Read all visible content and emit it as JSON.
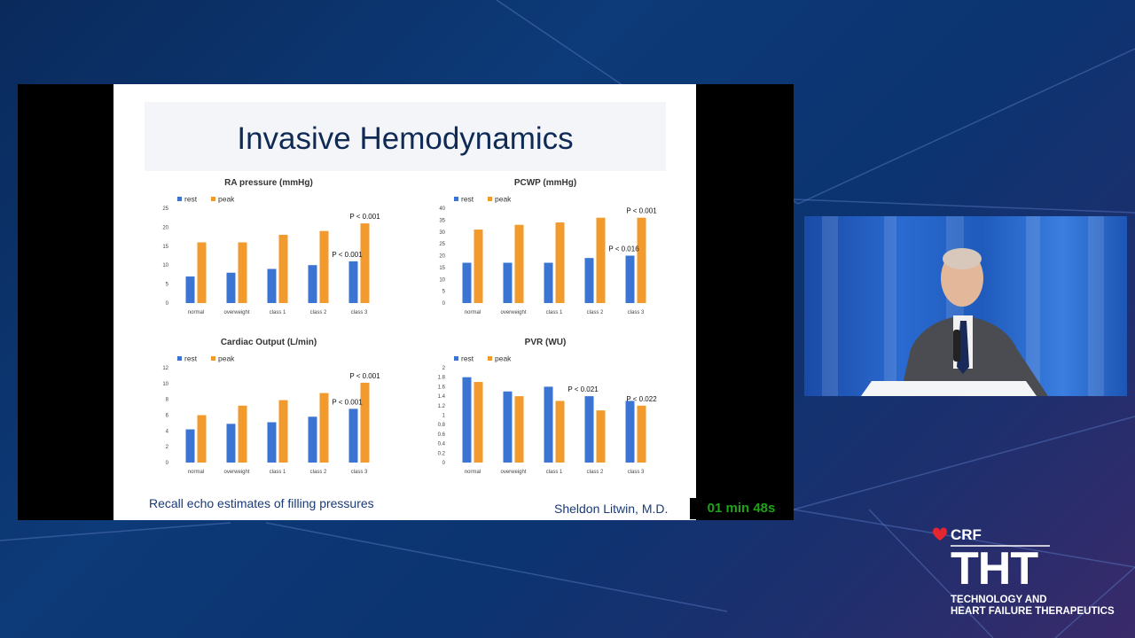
{
  "slide": {
    "title": "Invasive Hemodynamics",
    "footer_left": "Recall echo estimates of filling pressures",
    "presenter": "Sheldon Litwin, M.D.",
    "timer": "01 min 48s"
  },
  "colors": {
    "rest": "#3c74d2",
    "peak": "#f39a2d"
  },
  "branding": {
    "crf": "CRF",
    "tht": "THT",
    "tagline_1": "TECHNOLOGY AND",
    "tagline_2": "HEART FAILURE THERAPEUTICS"
  },
  "chart_data": [
    {
      "type": "bar",
      "title": "RA pressure (mmHg)",
      "categories": [
        "normal",
        "overweight",
        "class 1",
        "class 2",
        "class 3"
      ],
      "series": [
        {
          "name": "rest",
          "values": [
            7,
            8,
            9,
            10,
            11
          ]
        },
        {
          "name": "peak",
          "values": [
            16,
            16,
            18,
            19,
            21
          ]
        }
      ],
      "ylim": [
        0,
        25
      ],
      "yticks": [
        0,
        5,
        10,
        15,
        20,
        25
      ],
      "legend": "top-left",
      "annotations": [
        {
          "text": "P < 0.001",
          "category": 4,
          "series": "peak"
        },
        {
          "text": "P < 0.001",
          "category": 4,
          "series": "rest"
        }
      ]
    },
    {
      "type": "bar",
      "title": "PCWP (mmHg)",
      "categories": [
        "normal",
        "overweight",
        "class 1",
        "class 2",
        "class 3"
      ],
      "series": [
        {
          "name": "rest",
          "values": [
            17,
            17,
            17,
            19,
            20
          ]
        },
        {
          "name": "peak",
          "values": [
            31,
            33,
            34,
            36,
            36
          ]
        }
      ],
      "ylim": [
        0,
        40
      ],
      "yticks": [
        0,
        5,
        10,
        15,
        20,
        25,
        30,
        35,
        40
      ],
      "legend": "top-left",
      "annotations": [
        {
          "text": "P < 0.001",
          "category": 4,
          "series": "peak"
        },
        {
          "text": "P < 0.016",
          "category": 4,
          "series": "rest"
        }
      ]
    },
    {
      "type": "bar",
      "title": "Cardiac Output (L/min)",
      "categories": [
        "normal",
        "overweight",
        "class 1",
        "class 2",
        "class 3"
      ],
      "series": [
        {
          "name": "rest",
          "values": [
            4.2,
            4.9,
            5.1,
            5.8,
            6.8
          ]
        },
        {
          "name": "peak",
          "values": [
            6.0,
            7.2,
            7.9,
            8.8,
            10.1
          ]
        }
      ],
      "ylim": [
        0,
        12
      ],
      "yticks": [
        0,
        2,
        4,
        6,
        8,
        10,
        12
      ],
      "legend": "top-left",
      "annotations": [
        {
          "text": "P < 0.001",
          "category": 4,
          "series": "peak"
        },
        {
          "text": "P < 0.001",
          "category": 4,
          "series": "rest"
        }
      ]
    },
    {
      "type": "bar",
      "title": "PVR (WU)",
      "categories": [
        "normal",
        "overweight",
        "class 1",
        "class 2",
        "class 3"
      ],
      "series": [
        {
          "name": "rest",
          "values": [
            1.8,
            1.5,
            1.6,
            1.4,
            1.3
          ]
        },
        {
          "name": "peak",
          "values": [
            1.7,
            1.4,
            1.3,
            1.1,
            1.2
          ]
        }
      ],
      "ylim": [
        0,
        2
      ],
      "yticks": [
        0,
        0.2,
        0.4,
        0.6,
        0.8,
        1,
        1.2,
        1.4,
        1.6,
        1.8,
        2
      ],
      "legend": "top-left",
      "annotations": [
        {
          "text": "P < 0.021",
          "category": 3,
          "series": "rest"
        },
        {
          "text": "P < 0.022",
          "category": 4,
          "series": "peak"
        }
      ]
    }
  ]
}
